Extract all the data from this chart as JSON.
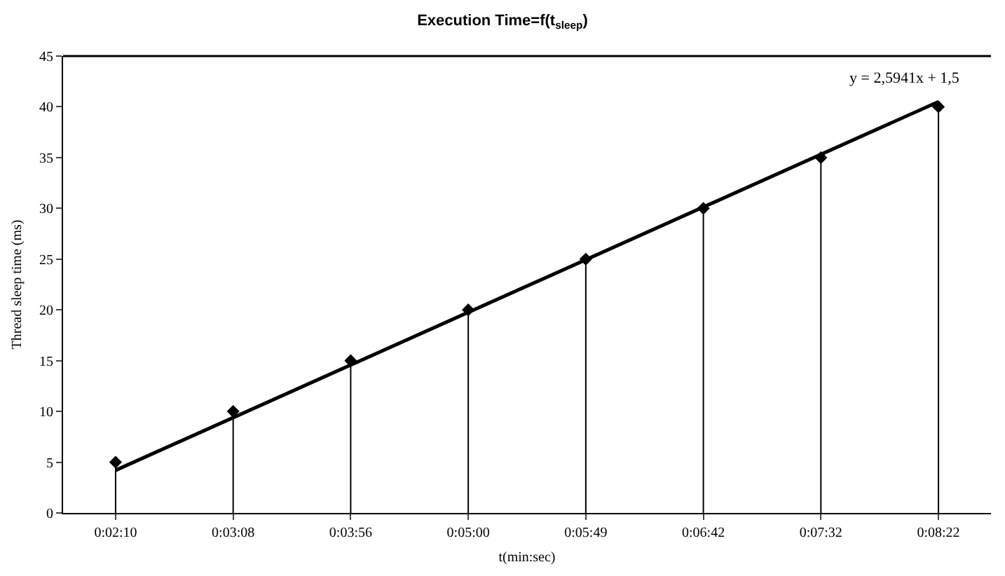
{
  "chart_data": {
    "type": "lollipop",
    "title": "Execution Time=f(t$_{sleep}$)",
    "xlabel": "t(min:sec)",
    "ylabel": "Thread sleep time (ms)",
    "categories": [
      "0:02:10",
      "0:03:08",
      "0:03:56",
      "0:05:00",
      "0:05:49",
      "0:06:42",
      "0:07:32",
      "0:08:22"
    ],
    "series": [
      {
        "color": "#000000",
        "marker": "diamond",
        "values": [
          5,
          10,
          15,
          20,
          25,
          30,
          35,
          40
        ]
      },
      {
        "type": "line",
        "color": "#000000",
        "marker": "none",
        "x": [
          "0:02:10",
          "0:08:22"
        ],
        "values": [
          4.2,
          40.5
        ]
      }
    ],
    "ylim": [
      0,
      45
    ],
    "yticks": [
      0,
      5,
      10,
      15,
      20,
      25,
      30,
      35,
      40,
      45
    ],
    "annotations": [
      "y = 2,5941x + 1,5"
    ]
  }
}
